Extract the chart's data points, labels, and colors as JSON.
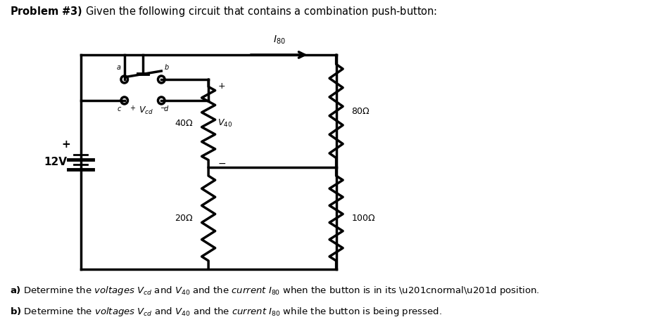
{
  "title": "Problem #3) Given the following circuit that contains a combination push-button:",
  "background_color": "#ffffff",
  "line_color": "#000000",
  "line_width": 2.5,
  "fig_width": 9.32,
  "fig_height": 4.68,
  "text_a": "a) Determine the voltages $V_{cd}$ and $V_{40}$ and the current $I_{80}$ when the button is in its “normal” position.",
  "text_b": "b) Determine the voltages $V_{cd}$ and $V_{40}$ and the current $I_{80}$ while the button is being pressed."
}
